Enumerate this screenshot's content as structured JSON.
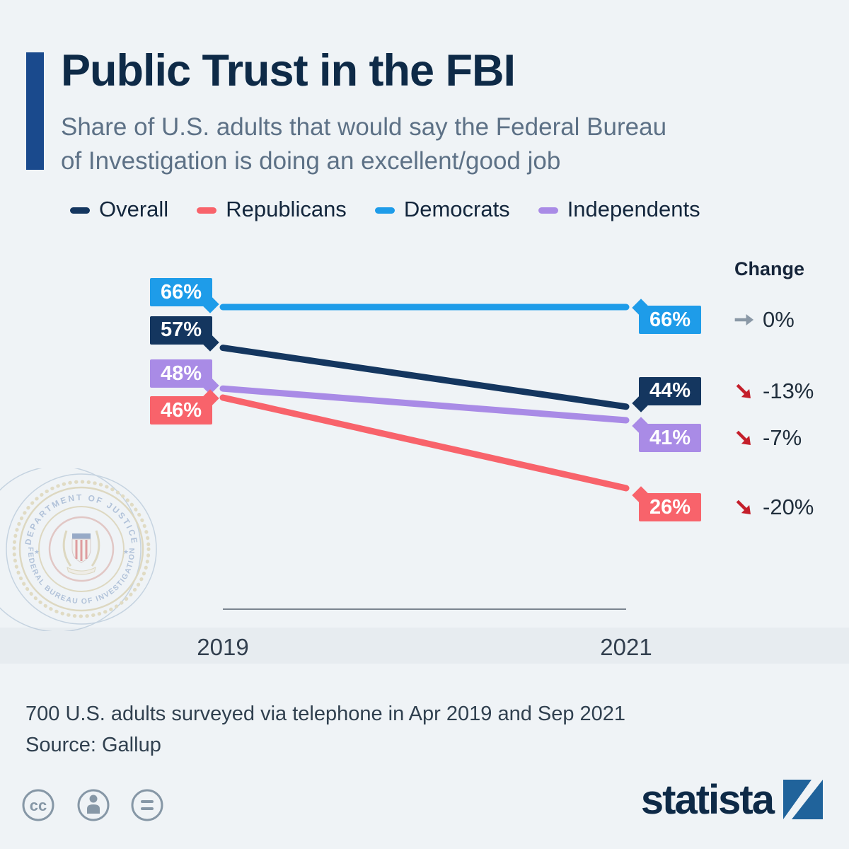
{
  "page": {
    "background": "#eff3f6",
    "band_color": "#e7ecf0"
  },
  "header": {
    "title": "Public Trust in the FBI",
    "subtitle_line1": "Share of U.S. adults that would say the Federal Bureau",
    "subtitle_line2": "of Investigation is doing an excellent/good job",
    "accent_color": "#1a4a8d"
  },
  "legend": [
    {
      "label": "Overall",
      "color": "#14365f"
    },
    {
      "label": "Republicans",
      "color": "#f8636b"
    },
    {
      "label": "Democrats",
      "color": "#1e9ce9"
    },
    {
      "label": "Independents",
      "color": "#a98be6"
    }
  ],
  "chart_data": {
    "type": "line",
    "title": "Public Trust in the FBI",
    "x": [
      2019,
      2021
    ],
    "x_labels": [
      "2019",
      "2021"
    ],
    "value_suffix": "%",
    "ylim": [
      0,
      70
    ],
    "legend_position": "top",
    "grid": false,
    "change_header": "Change",
    "change_colors": {
      "flat": "#8a98a6",
      "down": "#c41e2a"
    },
    "series": [
      {
        "name": "Democrats",
        "color": "#1e9ce9",
        "values": [
          66,
          66
        ],
        "change_label": "0%",
        "change_direction": "flat"
      },
      {
        "name": "Overall",
        "color": "#14365f",
        "values": [
          57,
          44
        ],
        "change_label": "-13%",
        "change_direction": "down"
      },
      {
        "name": "Independents",
        "color": "#a98be6",
        "values": [
          48,
          41
        ],
        "change_label": "-7%",
        "change_direction": "down"
      },
      {
        "name": "Republicans",
        "color": "#f8636b",
        "values": [
          46,
          26
        ],
        "change_label": "-20%",
        "change_direction": "down"
      }
    ]
  },
  "watermark": {
    "seal_top_text": "DEPARTMENT OF JUSTICE",
    "seal_bottom_text": "FEDERAL BUREAU OF INVESTIGATION"
  },
  "footer": {
    "note": "700 U.S. adults surveyed via telephone in Apr 2019 and Sep 2021",
    "source": "Source: Gallup",
    "brand": "statista",
    "brand_color": "#20639b",
    "cc_text": "cc",
    "icon_names": [
      "cc-license-icon",
      "attribution-icon",
      "equal-icon"
    ]
  }
}
